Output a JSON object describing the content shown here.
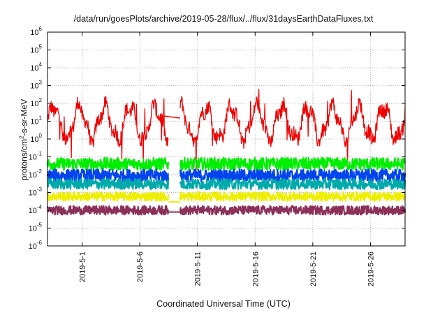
{
  "chart_data": {
    "type": "line",
    "title": "/data/run/goesPlots/archive/2019-05-28/flux/../flux/31daysEarthDataFluxes.txt",
    "xlabel": "Coordinated Universal Time (UTC)",
    "ylabel": {
      "prefix": "protons/cm",
      "sup": "2",
      "suffix": "-s-sr-MeV"
    },
    "x_range": [
      "2019-04-28",
      "2019-05-29"
    ],
    "x_ticks": [
      "2019-5-1",
      "2019-5-6",
      "2019-5-11",
      "2019-5-16",
      "2019-5-21",
      "2019-5-26"
    ],
    "y_scale": "log",
    "ylim": [
      1e-06,
      1000000.0
    ],
    "y_ticks": [
      {
        "base": "10",
        "exp": "-6"
      },
      {
        "base": "10",
        "exp": "-5"
      },
      {
        "base": "10",
        "exp": "-4"
      },
      {
        "base": "10",
        "exp": "-3"
      },
      {
        "base": "10",
        "exp": "-2"
      },
      {
        "base": "10",
        "exp": "-1"
      },
      {
        "base": "10",
        "exp": "0"
      },
      {
        "base": "10",
        "exp": "1"
      },
      {
        "base": "10",
        "exp": "2"
      },
      {
        "base": "10",
        "exp": "3"
      },
      {
        "base": "10",
        "exp": "4"
      },
      {
        "base": "10",
        "exp": "5"
      },
      {
        "base": "10",
        "exp": "6"
      }
    ],
    "grid": true,
    "data_gap": [
      "2019-05-08T12:00",
      "2019-05-09T12:00"
    ],
    "series": [
      {
        "color": "#ee0000",
        "level": 8,
        "spread": 1.0,
        "cycle_days": 2.2
      },
      {
        "color": "#00ee00",
        "level": 0.04,
        "spread": 0.35,
        "cycle_days": 0
      },
      {
        "color": "#0044ee",
        "level": 0.009,
        "spread": 0.35,
        "cycle_days": 0
      },
      {
        "color": "#00aaaa",
        "level": 0.003,
        "spread": 0.3,
        "cycle_days": 0
      },
      {
        "color": "#eeee00",
        "level": 0.0006,
        "spread": 0.25,
        "cycle_days": 0
      },
      {
        "color": "#8b3058",
        "level": 0.0001,
        "spread": 0.25,
        "cycle_days": 0
      }
    ],
    "gap_values": {
      "yellow_floor": 0.0003,
      "maroon_floor": 8e-05
    }
  }
}
